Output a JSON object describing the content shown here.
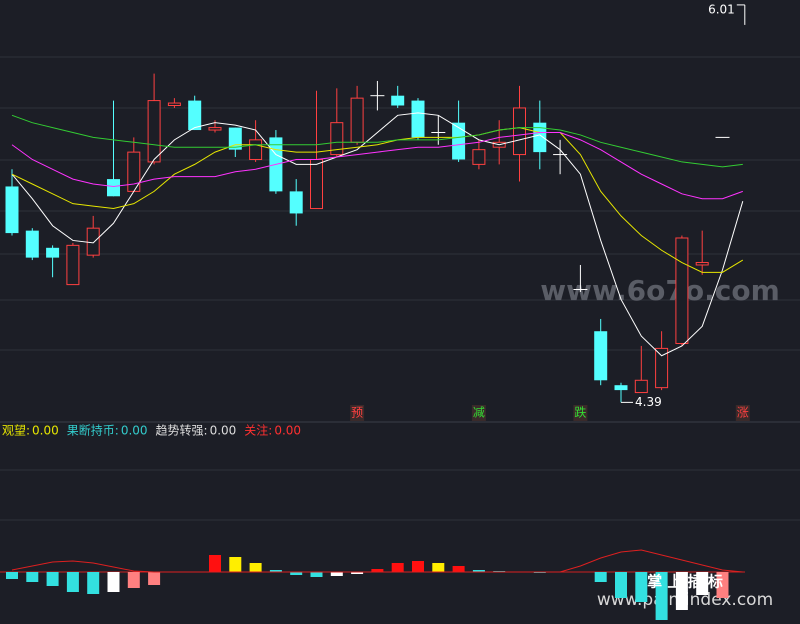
{
  "chart_data": [
    {
      "type": "candlestick",
      "categories": [
        null,
        null,
        null,
        null,
        null,
        null,
        null,
        null,
        null,
        null,
        null,
        null,
        null,
        null,
        null,
        null,
        null,
        null,
        null,
        null,
        null,
        null,
        null,
        null,
        null,
        null,
        null,
        null,
        null,
        null,
        null,
        null,
        null,
        null,
        null,
        null,
        null
      ],
      "open": [
        5.27,
        5.09,
        5.02,
        4.87,
        4.99,
        5.3,
        5.25,
        5.37,
        5.6,
        5.62,
        5.5,
        5.51,
        5.38,
        5.47,
        5.25,
        5.18,
        5.4,
        5.45,
        5.64,
        5.64,
        5.62,
        5.49,
        5.53,
        5.36,
        5.43,
        5.4,
        5.53,
        5.4,
        4.85,
        4.68,
        4.46,
        4.43,
        4.45,
        4.63,
        4.95,
        5.47,
        null
      ],
      "high": [
        5.34,
        5.1,
        5.03,
        5.04,
        5.15,
        5.62,
        5.47,
        5.73,
        5.63,
        5.64,
        5.54,
        5.51,
        5.54,
        5.5,
        5.3,
        5.66,
        5.67,
        5.68,
        5.7,
        5.68,
        5.63,
        5.56,
        5.62,
        5.46,
        5.54,
        5.68,
        5.62,
        5.46,
        4.95,
        4.73,
        4.47,
        4.62,
        4.68,
        5.07,
        5.09,
        5.47,
        null
      ],
      "low": [
        5.07,
        4.97,
        4.9,
        4.87,
        4.98,
        5.23,
        5.25,
        5.36,
        5.59,
        5.5,
        5.49,
        5.39,
        5.37,
        5.24,
        5.11,
        5.18,
        5.39,
        5.44,
        5.58,
        5.59,
        5.46,
        5.44,
        5.37,
        5.34,
        5.36,
        5.29,
        5.34,
        5.32,
        4.84,
        4.46,
        4.39,
        4.43,
        4.44,
        4.62,
        4.91,
        5.47,
        null
      ],
      "close": [
        5.08,
        4.98,
        4.98,
        5.03,
        5.1,
        5.23,
        5.41,
        5.62,
        5.61,
        5.5,
        5.51,
        5.42,
        5.46,
        5.25,
        5.16,
        5.38,
        5.53,
        5.63,
        5.64,
        5.6,
        5.47,
        5.49,
        5.38,
        5.42,
        5.45,
        5.59,
        5.41,
        5.4,
        4.85,
        4.48,
        4.44,
        4.48,
        4.61,
        5.06,
        4.96,
        5.47,
        null
      ],
      "up_color": "#ff4040",
      "down_color": "#54ffff",
      "flat_color": "#ffffff",
      "series": [
        {
          "color": "#ffffff",
          "values": [
            5.32,
            5.22,
            5.11,
            5.05,
            5.04,
            5.12,
            5.25,
            5.38,
            5.46,
            5.51,
            5.53,
            5.52,
            5.5,
            5.4,
            5.36,
            5.36,
            5.39,
            5.42,
            5.49,
            5.56,
            5.57,
            5.56,
            5.51,
            5.46,
            5.44,
            5.46,
            5.48,
            5.42,
            5.32,
            5.05,
            4.81,
            4.66,
            4.58,
            4.62,
            4.7,
            4.93,
            5.21
          ]
        },
        {
          "color": "#e6e600",
          "values": [
            5.32,
            5.28,
            5.24,
            5.2,
            5.19,
            5.18,
            5.2,
            5.25,
            5.32,
            5.36,
            5.41,
            5.44,
            5.44,
            5.42,
            5.41,
            5.41,
            5.42,
            5.43,
            5.44,
            5.46,
            5.47,
            5.47,
            5.47,
            5.48,
            5.5,
            5.51,
            5.49,
            5.49,
            5.4,
            5.25,
            5.15,
            5.07,
            5.01,
            4.96,
            4.92,
            4.92,
            4.97
          ]
        },
        {
          "color": "#ff33ff",
          "values": [
            5.44,
            5.38,
            5.34,
            5.3,
            5.28,
            5.27,
            5.28,
            5.3,
            5.31,
            5.31,
            5.31,
            5.33,
            5.34,
            5.36,
            5.38,
            5.38,
            5.39,
            5.4,
            5.41,
            5.42,
            5.43,
            5.43,
            5.44,
            5.45,
            5.47,
            5.48,
            5.49,
            5.49,
            5.46,
            5.42,
            5.37,
            5.32,
            5.28,
            5.24,
            5.22,
            5.22,
            5.25
          ]
        },
        {
          "color": "#33cc33",
          "values": [
            5.56,
            5.53,
            5.51,
            5.49,
            5.47,
            5.46,
            5.45,
            5.44,
            5.43,
            5.43,
            5.43,
            5.43,
            5.44,
            5.44,
            5.44,
            5.44,
            5.45,
            5.45,
            5.45,
            5.46,
            5.46,
            5.46,
            5.47,
            5.48,
            5.5,
            5.51,
            5.51,
            5.5,
            5.48,
            5.45,
            5.43,
            5.41,
            5.39,
            5.37,
            5.36,
            5.35,
            5.36
          ]
        }
      ],
      "annotations": [
        {
          "label": "6.01",
          "value": 6.01,
          "index": 36
        },
        {
          "label": "4.39",
          "value": 4.39,
          "index": 30
        }
      ],
      "signals": [
        {
          "text": "预",
          "index": 17,
          "color": "#ff4040"
        },
        {
          "text": "减",
          "index": 23,
          "color": "#33dd33"
        },
        {
          "text": "跌",
          "index": 28,
          "color": "#33dd33"
        },
        {
          "text": "涨",
          "index": 36,
          "color": "#ff4040"
        }
      ],
      "ylim": [
        4.31,
        6.03
      ],
      "watermark": "www.6o7o.com"
    },
    {
      "type": "bar",
      "legend": [
        {
          "name": "观望:",
          "value": 0,
          "value_label": "0.00",
          "color": "#e6e600"
        },
        {
          "name": "果断持币:",
          "value": 0,
          "value_label": "0.00",
          "color": "#33cccc"
        },
        {
          "name": "趋势转强:",
          "value": 0,
          "value_label": "0.00",
          "color": "#dddddd"
        },
        {
          "name": "关注:",
          "value": 0,
          "value_label": "0.00",
          "color": "#ff3030"
        }
      ],
      "values": [
        -7,
        -10,
        -14,
        -20,
        -22,
        -20,
        -16,
        -13,
        null,
        null,
        17,
        15,
        9,
        2,
        -3,
        -5,
        -4,
        -2,
        3,
        9,
        11,
        9,
        6,
        2,
        1,
        null,
        -1,
        null,
        null,
        -10,
        -26,
        -30,
        -48,
        -38,
        -23,
        -26,
        null
      ],
      "colors": [
        "#33e0e0",
        "#33e0e0",
        "#33e0e0",
        "#33e0e0",
        "#33e0e0",
        "#ffffff",
        "#ff8080",
        "#ff8080",
        null,
        null,
        "#ff1010",
        "#ffee00",
        "#ffee00",
        "#33e0e0",
        "#33e0e0",
        "#33e0e0",
        "#ffffff",
        "#ffffff",
        "#ff1010",
        "#ff1010",
        "#ff1010",
        "#ffee00",
        "#ff1010",
        "#33e0e0",
        "#33e0e0",
        null,
        "#33e0e0",
        null,
        null,
        "#33e0e0",
        "#33e0e0",
        "#33e0e0",
        "#33e0e0",
        "#ffffff",
        "#ffffff",
        "#ff8080",
        null
      ],
      "line": {
        "color": "#dd2020",
        "values": [
          2,
          6,
          10,
          11,
          9,
          5,
          1,
          0,
          0,
          0,
          0,
          0,
          0,
          0,
          0,
          0,
          0,
          0,
          0,
          0,
          0,
          0,
          0,
          0,
          0,
          0,
          0,
          0,
          6,
          14,
          20,
          22,
          17,
          12,
          7,
          2,
          0
        ]
      },
      "ylim": [
        -52,
        142
      ],
      "footer_text": "掌 上 插 标",
      "watermark": "www.palmindex.com"
    }
  ]
}
